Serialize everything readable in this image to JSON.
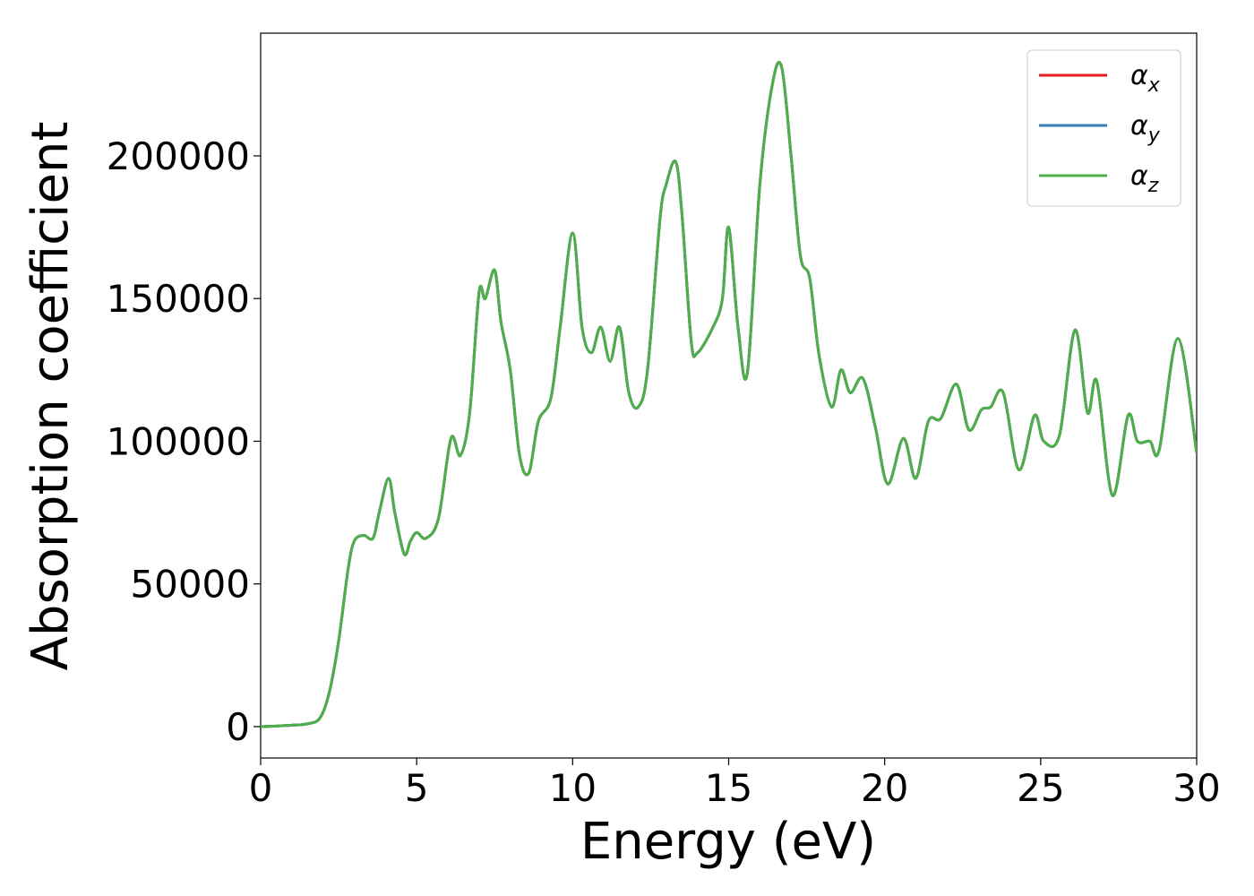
{
  "chart_data": {
    "type": "line",
    "title": "",
    "xlabel": "Energy (eV)",
    "ylabel": "Absorption coefficient",
    "xlim": [
      0,
      30
    ],
    "ylim": [
      -11000,
      243000
    ],
    "xticks": [
      0,
      5,
      10,
      15,
      20,
      25,
      30
    ],
    "xtick_labels": [
      "0",
      "5",
      "10",
      "15",
      "20",
      "25",
      "30"
    ],
    "yticks": [
      0,
      50000,
      100000,
      150000,
      200000
    ],
    "ytick_labels": [
      "0",
      "50000",
      "100000",
      "150000",
      "200000"
    ],
    "grid": false,
    "legend_position": "top-right",
    "x": [
      0,
      0.5,
      1.0,
      1.5,
      1.9,
      2.2,
      2.5,
      2.8,
      3.0,
      3.3,
      3.6,
      3.8,
      4.1,
      4.3,
      4.6,
      4.8,
      5.0,
      5.3,
      5.7,
      6.1,
      6.4,
      6.7,
      7.0,
      7.2,
      7.5,
      7.7,
      8.0,
      8.3,
      8.6,
      8.9,
      9.3,
      9.6,
      10.0,
      10.3,
      10.6,
      10.9,
      11.2,
      11.5,
      11.8,
      12.1,
      12.4,
      12.8,
      13.0,
      13.3,
      13.5,
      13.8,
      14.0,
      14.5,
      14.8,
      15.0,
      15.3,
      15.6,
      16.0,
      16.4,
      16.7,
      17.0,
      17.3,
      17.6,
      17.9,
      18.3,
      18.6,
      18.9,
      19.3,
      19.7,
      20.1,
      20.6,
      21.0,
      21.4,
      21.8,
      22.3,
      22.7,
      23.1,
      23.4,
      23.8,
      24.3,
      24.8,
      25.1,
      25.6,
      26.1,
      26.5,
      26.8,
      27.3,
      27.8,
      28.1,
      28.5,
      28.8,
      29.4,
      30.0
    ],
    "series": [
      {
        "name": "α_x",
        "color": "#e41a1c",
        "values": [
          0,
          200,
          500,
          1000,
          3000,
          12000,
          30000,
          55000,
          65000,
          67000,
          66000,
          75000,
          87000,
          75000,
          60500,
          65000,
          68000,
          66000,
          73000,
          101000,
          95000,
          110000,
          152000,
          150000,
          160000,
          142000,
          125000,
          95000,
          89000,
          107000,
          115000,
          140000,
          173000,
          140000,
          131000,
          140000,
          128000,
          140000,
          117000,
          112000,
          125000,
          178000,
          190000,
          198000,
          180000,
          135000,
          131000,
          140000,
          150000,
          175000,
          140000,
          124000,
          190000,
          225000,
          231000,
          200000,
          165000,
          157000,
          130000,
          112000,
          125000,
          117000,
          122000,
          105000,
          85000,
          101000,
          87000,
          107000,
          108000,
          120000,
          104000,
          111000,
          112000,
          117000,
          90000,
          109000,
          100000,
          102000,
          139000,
          110000,
          121000,
          81000,
          109000,
          100000,
          100000,
          97000,
          136000,
          96000
        ]
      },
      {
        "name": "α_y",
        "color": "#377eb8",
        "values": [
          0,
          200,
          500,
          1000,
          3000,
          12000,
          30000,
          55000,
          65000,
          67000,
          66000,
          75000,
          87000,
          75000,
          60500,
          65000,
          68000,
          66000,
          73000,
          101000,
          95000,
          110000,
          152000,
          150000,
          160000,
          142000,
          125000,
          95000,
          89000,
          107000,
          115000,
          140000,
          173000,
          140000,
          131000,
          140000,
          128000,
          140000,
          117000,
          112000,
          125000,
          178000,
          190000,
          198000,
          180000,
          135000,
          131000,
          140000,
          150000,
          175000,
          140000,
          124000,
          190000,
          225000,
          231000,
          200000,
          165000,
          157000,
          130000,
          112000,
          125000,
          117000,
          122000,
          105000,
          85000,
          101000,
          87000,
          107000,
          108000,
          120000,
          104000,
          111000,
          112000,
          117000,
          90000,
          109000,
          100000,
          102000,
          139000,
          110000,
          121000,
          81000,
          109000,
          100000,
          100000,
          97000,
          136000,
          96000
        ]
      },
      {
        "name": "α_z",
        "color": "#4daf4a",
        "values": [
          0,
          200,
          500,
          1000,
          3000,
          12000,
          30000,
          55000,
          65000,
          67000,
          66000,
          75000,
          87000,
          75000,
          60500,
          65000,
          68000,
          66000,
          73000,
          101000,
          95000,
          110000,
          152000,
          150000,
          160000,
          142000,
          125000,
          95000,
          89000,
          107000,
          115000,
          140000,
          173000,
          140000,
          131000,
          140000,
          128000,
          140000,
          117000,
          112000,
          125000,
          178000,
          190000,
          198000,
          180000,
          135000,
          131000,
          140000,
          150000,
          175000,
          140000,
          124000,
          190000,
          225000,
          231000,
          200000,
          165000,
          157000,
          130000,
          112000,
          125000,
          117000,
          122000,
          105000,
          85000,
          101000,
          87000,
          107000,
          108000,
          120000,
          104000,
          111000,
          112000,
          117000,
          90000,
          109000,
          100000,
          102000,
          139000,
          110000,
          121000,
          81000,
          109000,
          100000,
          100000,
          97000,
          136000,
          96000
        ]
      }
    ],
    "legend": [
      {
        "symbol": "α",
        "sub": "x",
        "color": "#e41a1c"
      },
      {
        "symbol": "α",
        "sub": "y",
        "color": "#377eb8"
      },
      {
        "symbol": "α",
        "sub": "z",
        "color": "#4daf4a"
      }
    ]
  }
}
